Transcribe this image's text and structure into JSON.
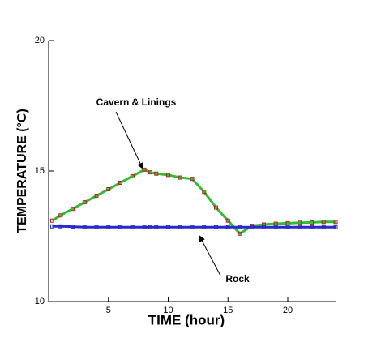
{
  "chart_data": {
    "type": "line",
    "xlabel": "TIME (hour)",
    "ylabel": "TEMPERATURE (°C)",
    "annotations": [
      "Cavern & Linings",
      "Rock"
    ],
    "x": [
      0.3,
      1,
      2,
      3,
      4,
      5,
      6,
      7,
      8,
      8.5,
      9,
      10,
      11,
      12,
      13,
      14,
      15,
      16,
      17,
      18,
      19,
      20,
      21,
      22,
      23,
      24
    ],
    "series": [
      {
        "name": "Cavern & Linings",
        "color": "#33bb33",
        "marker_color": "#b22222",
        "values": [
          13.1,
          13.3,
          13.55,
          13.8,
          14.05,
          14.3,
          14.55,
          14.8,
          15.05,
          14.95,
          14.9,
          14.85,
          14.75,
          14.7,
          14.2,
          13.6,
          13.1,
          12.6,
          12.9,
          12.95,
          12.98,
          13.0,
          13.02,
          13.03,
          13.05,
          13.05
        ]
      },
      {
        "name": "Rock",
        "color": "#2a2ac8",
        "marker_color": "#2a2ac8",
        "values": [
          12.88,
          12.88,
          12.87,
          12.85,
          12.85,
          12.85,
          12.85,
          12.85,
          12.85,
          12.85,
          12.85,
          12.85,
          12.85,
          12.85,
          12.85,
          12.85,
          12.85,
          12.85,
          12.85,
          12.85,
          12.85,
          12.85,
          12.85,
          12.85,
          12.85,
          12.85
        ]
      }
    ],
    "xlim": [
      0,
      24
    ],
    "ylim": [
      10,
      20
    ],
    "xticks": [
      5,
      10,
      15,
      20
    ],
    "yticks": [
      10,
      15,
      20
    ],
    "grid": false
  }
}
